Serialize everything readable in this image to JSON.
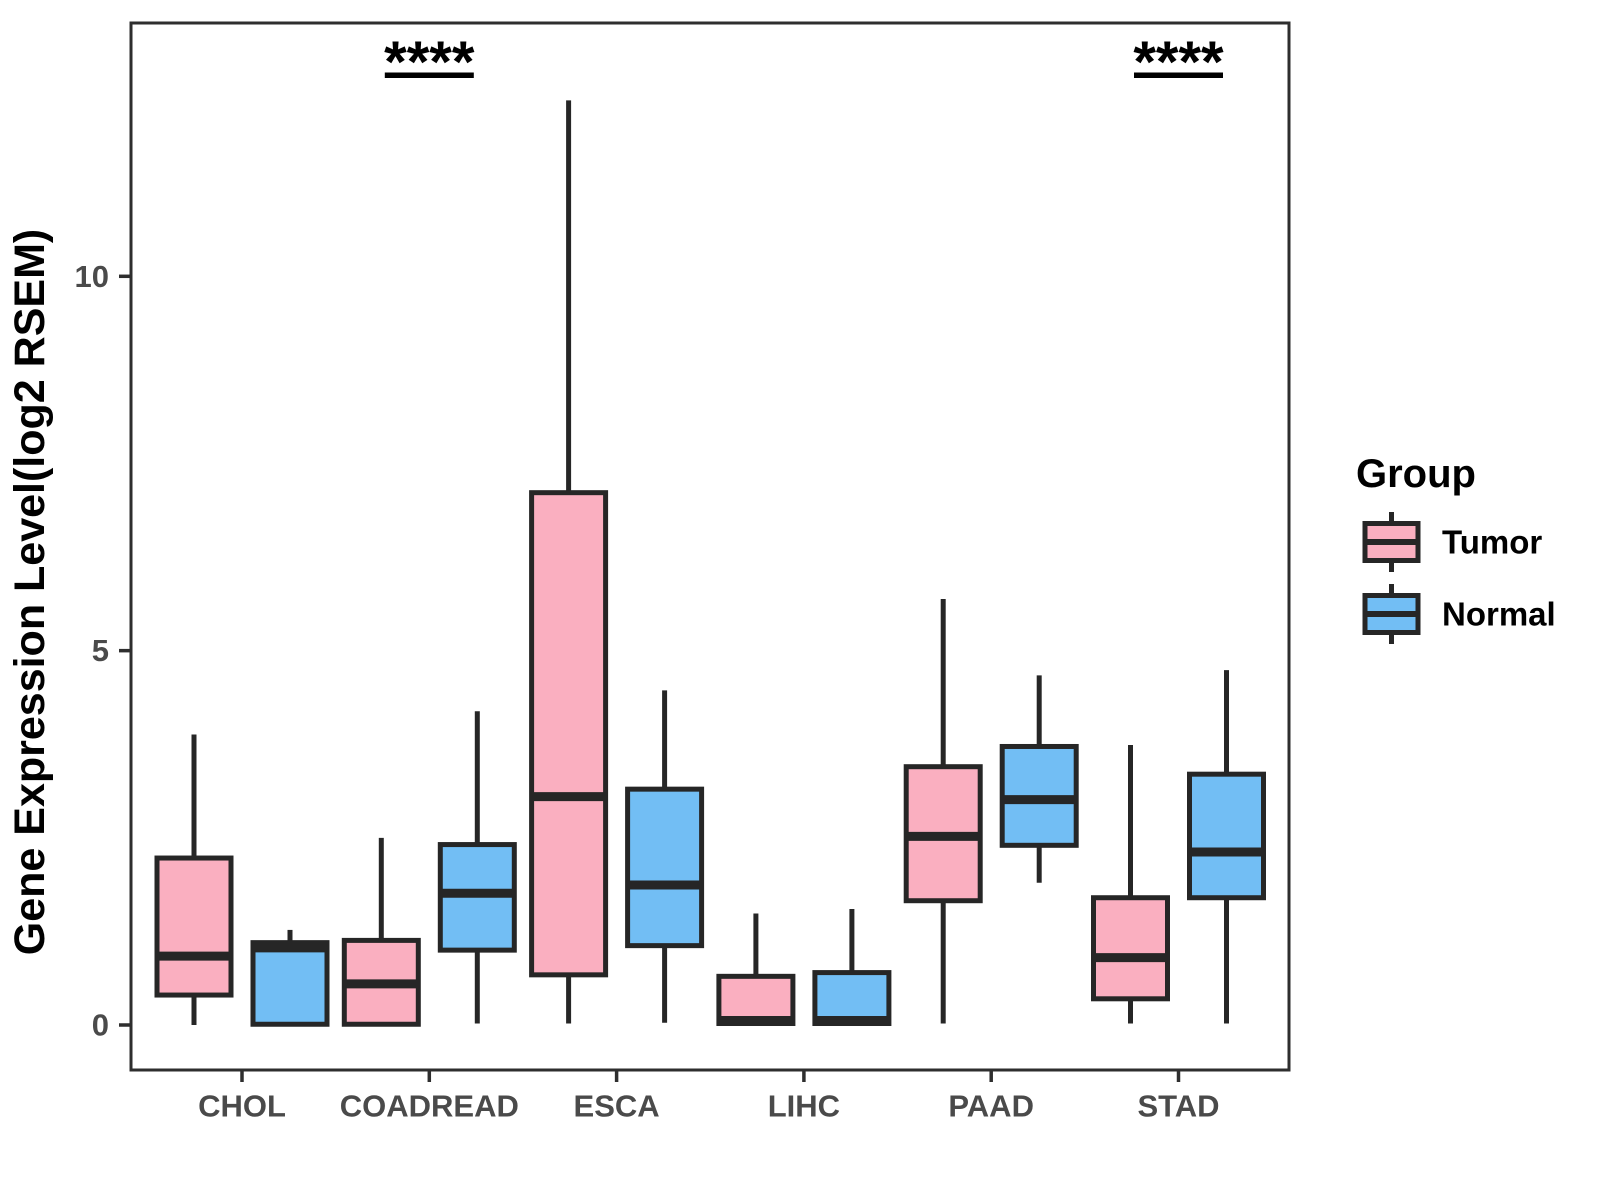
{
  "chart_data": {
    "type": "boxplot",
    "title": "",
    "xlabel": "",
    "ylabel": "Gene Expression Level(log2 RSEM)",
    "ylim": [
      -0.6,
      13.4
    ],
    "yticks": [
      0,
      5,
      10
    ],
    "grid": false,
    "categories": [
      "CHOL",
      "COADREAD",
      "ESCA",
      "LIHC",
      "PAAD",
      "STAD"
    ],
    "series": [
      {
        "name": "Tumor",
        "color": "#FAAFC0",
        "boxes": [
          {
            "min": 0.0,
            "q1": 0.4,
            "median": 0.92,
            "q3": 2.23,
            "max": 3.88
          },
          {
            "min": 0.0,
            "q1": 0.01,
            "median": 0.55,
            "q3": 1.13,
            "max": 2.5
          },
          {
            "min": 0.02,
            "q1": 0.67,
            "median": 3.05,
            "q3": 7.11,
            "max": 12.35
          },
          {
            "min": 0.02,
            "q1": 0.02,
            "median": 0.06,
            "q3": 0.65,
            "max": 1.49
          },
          {
            "min": 0.02,
            "q1": 1.66,
            "median": 2.52,
            "q3": 3.45,
            "max": 5.69
          },
          {
            "min": 0.02,
            "q1": 0.35,
            "median": 0.9,
            "q3": 1.7,
            "max": 3.74
          }
        ]
      },
      {
        "name": "Normal",
        "color": "#72BEF4",
        "boxes": [
          {
            "min": 0.0,
            "q1": 0.01,
            "median": 1.03,
            "q3": 1.1,
            "max": 1.27
          },
          {
            "min": 0.02,
            "q1": 1.0,
            "median": 1.76,
            "q3": 2.41,
            "max": 4.19
          },
          {
            "min": 0.03,
            "q1": 1.06,
            "median": 1.87,
            "q3": 3.15,
            "max": 4.47
          },
          {
            "min": 0.02,
            "q1": 0.02,
            "median": 0.06,
            "q3": 0.7,
            "max": 1.55
          },
          {
            "min": 1.9,
            "q1": 2.4,
            "median": 3.01,
            "q3": 3.72,
            "max": 4.67
          },
          {
            "min": 0.02,
            "q1": 1.7,
            "median": 2.31,
            "q3": 3.35,
            "max": 4.74
          }
        ]
      }
    ],
    "significance": [
      {
        "category": "COADREAD",
        "label": "****"
      },
      {
        "category": "STAD",
        "label": "****"
      }
    ],
    "legend": {
      "title": "Group",
      "position": "right",
      "items": [
        {
          "label": "Tumor",
          "color": "#FAAFC0"
        },
        {
          "label": "Normal",
          "color": "#72BEF4"
        }
      ]
    }
  },
  "colors": {
    "box_stroke": "#262626",
    "panel_border": "#2e2e2e",
    "axis_text": "#4a4a4a",
    "label_text": "#000000",
    "background": "#ffffff"
  }
}
